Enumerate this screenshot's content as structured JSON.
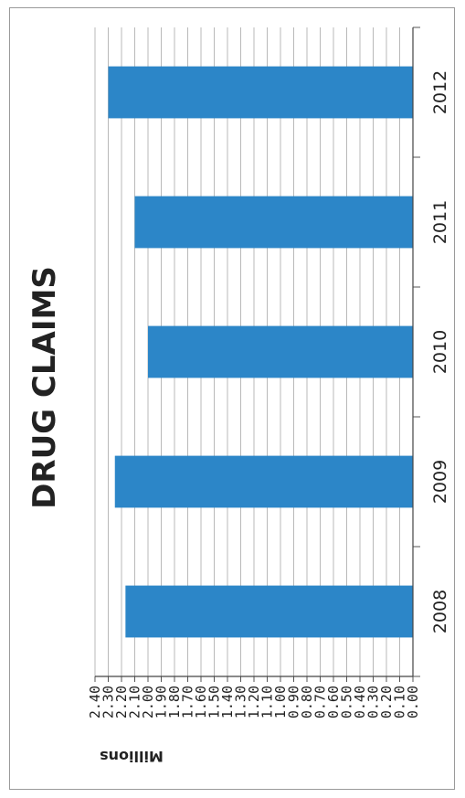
{
  "chart_data": {
    "type": "bar",
    "orientation": "vertical",
    "rotated_display": "90deg clockwise",
    "title": "DRUG CLAIMS",
    "ylabel": "Millions",
    "xlabel": "",
    "categories": [
      "2008",
      "2009",
      "2010",
      "2011",
      "2012"
    ],
    "values": [
      2.17,
      2.25,
      2.0,
      2.1,
      2.3
    ],
    "ylim": [
      0,
      2.4
    ],
    "y_ticks": [
      "0.00",
      "0.10",
      "0.20",
      "0.30",
      "0.40",
      "0.50",
      "0.60",
      "0.70",
      "0.80",
      "0.90",
      "1.00",
      "1.10",
      "1.20",
      "1.30",
      "1.40",
      "1.50",
      "1.60",
      "1.70",
      "1.80",
      "1.90",
      "2.00",
      "2.10",
      "2.20",
      "2.30",
      "2.40"
    ],
    "grid": true,
    "legend": "none",
    "bar_color": "#2c86c8",
    "grid_color": "#b9b9b9"
  }
}
